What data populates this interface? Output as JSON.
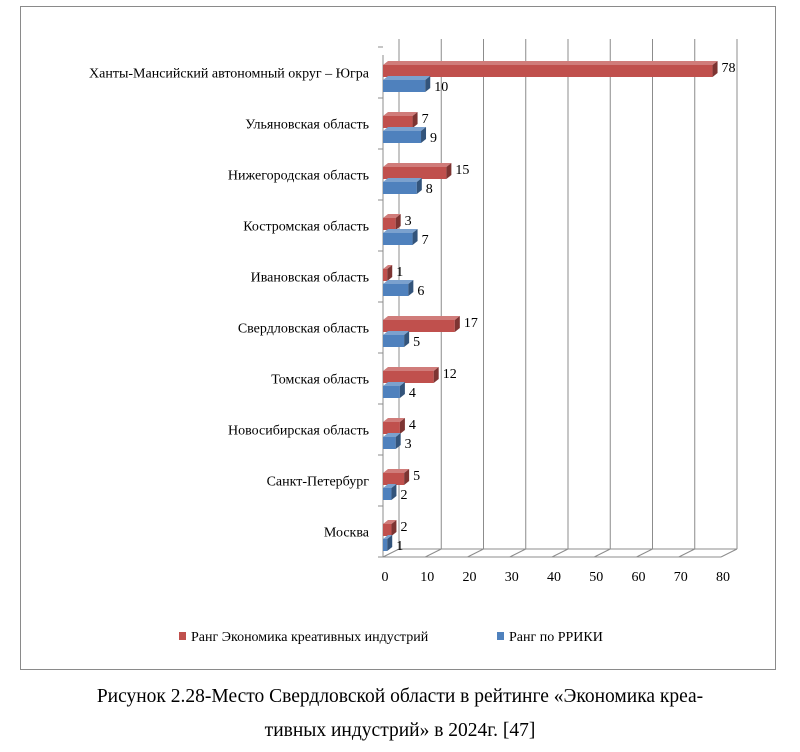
{
  "chart_data": {
    "type": "bar",
    "orientation": "horizontal",
    "categories": [
      "Москва",
      "Санкт-Петербург",
      "Новосибирская область",
      "Томская область",
      "Свердловская область",
      "Ивановская область",
      "Костромская область",
      "Нижегородская область",
      "Ульяновская область",
      "Ханты-Мансийский автономный округ – Югра"
    ],
    "series": [
      {
        "name": "Ранг Экономика креативных индустрий",
        "color": "#c0504d",
        "values": [
          2,
          5,
          4,
          12,
          17,
          1,
          3,
          15,
          7,
          78
        ]
      },
      {
        "name": "Ранг по РРИКИ",
        "color": "#4f81bd",
        "values": [
          1,
          2,
          3,
          4,
          5,
          6,
          7,
          8,
          9,
          10
        ]
      }
    ],
    "xlim": [
      0,
      80
    ],
    "xticks": [
      "0",
      "10",
      "20",
      "30",
      "40",
      "50",
      "60",
      "70",
      "80"
    ],
    "grid": true,
    "legend_position": "bottom",
    "data_labels": true
  },
  "caption": {
    "line1": "Рисунок 2.28-Место Свердловской области в рейтинге «Экономика креа-",
    "line2": "тивных индустрий» в 2024г. [47]"
  }
}
